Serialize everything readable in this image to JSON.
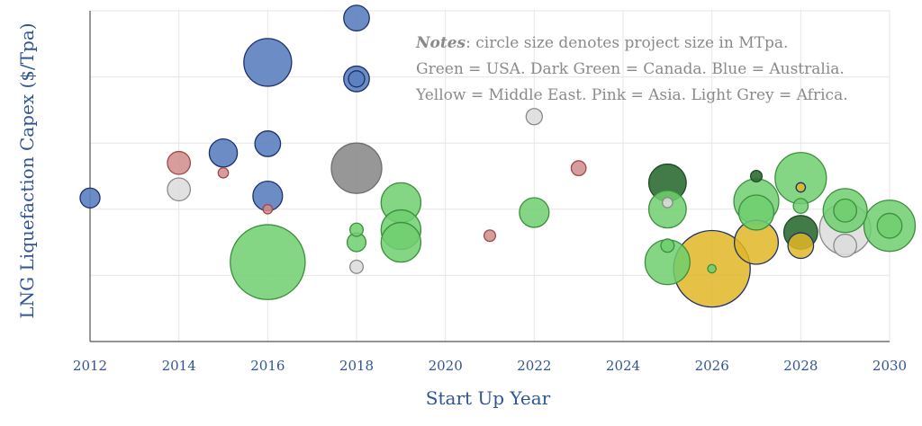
{
  "chart_data": {
    "type": "scatter",
    "title": "",
    "xlabel": "Start Up Year",
    "ylabel": "LNG Liquefaction Capex ($/Tpa)",
    "xlim": [
      2012,
      2030
    ],
    "ylim": [
      0,
      5
    ],
    "xticks": [
      2012,
      2014,
      2016,
      2018,
      2020,
      2022,
      2024,
      2026,
      2028,
      2030
    ],
    "grid": true,
    "notes": {
      "lead": "Notes",
      "lines": [
        ": circle size denotes project size in MTpa.",
        "Green = USA. Dark Green = Canada. Blue = Australia.",
        "Yellow = Middle East. Pink = Asia. Light Grey = Africa."
      ]
    },
    "colors": {
      "usa": "#6fcf6f",
      "canada": "#2e6b34",
      "australia": "#5b7fbf",
      "middle_east": "#e0b626",
      "asia": "#d08c8c",
      "africa": "#dcdcdc",
      "other": "#8c8c8c"
    },
    "points": [
      {
        "x": 2012,
        "y": 2.17,
        "size": 4.5,
        "region": "australia"
      },
      {
        "x": 2014,
        "y": 2.7,
        "size": 6,
        "region": "asia"
      },
      {
        "x": 2014,
        "y": 2.3,
        "size": 6,
        "region": "africa"
      },
      {
        "x": 2015,
        "y": 2.85,
        "size": 9,
        "region": "australia"
      },
      {
        "x": 2015,
        "y": 2.55,
        "size": 1.2,
        "region": "asia"
      },
      {
        "x": 2016,
        "y": 4.22,
        "size": 26,
        "region": "australia"
      },
      {
        "x": 2016,
        "y": 2.99,
        "size": 7.5,
        "region": "australia"
      },
      {
        "x": 2016,
        "y": 2.2,
        "size": 10,
        "region": "australia"
      },
      {
        "x": 2016,
        "y": 2.0,
        "size": 1.0,
        "region": "asia"
      },
      {
        "x": 2016,
        "y": 1.2,
        "size": 64,
        "region": "usa"
      },
      {
        "x": 2018,
        "y": 4.89,
        "size": 7.5,
        "region": "australia"
      },
      {
        "x": 2018,
        "y": 3.97,
        "size": 7.5,
        "region": "australia"
      },
      {
        "x": 2018,
        "y": 3.97,
        "size": 3.0,
        "region": "australia"
      },
      {
        "x": 2018,
        "y": 2.62,
        "size": 29,
        "region": "other"
      },
      {
        "x": 2018,
        "y": 1.69,
        "size": 2.0,
        "region": "usa"
      },
      {
        "x": 2018,
        "y": 1.5,
        "size": 4.0,
        "region": "usa"
      },
      {
        "x": 2018,
        "y": 1.13,
        "size": 2.0,
        "region": "africa"
      },
      {
        "x": 2019,
        "y": 2.1,
        "size": 18,
        "region": "usa"
      },
      {
        "x": 2019,
        "y": 1.69,
        "size": 18,
        "region": "usa"
      },
      {
        "x": 2019,
        "y": 1.5,
        "size": 18,
        "region": "usa"
      },
      {
        "x": 2021,
        "y": 1.6,
        "size": 1.5,
        "region": "asia"
      },
      {
        "x": 2022,
        "y": 3.4,
        "size": 3.0,
        "region": "africa"
      },
      {
        "x": 2022,
        "y": 1.95,
        "size": 10,
        "region": "usa"
      },
      {
        "x": 2023,
        "y": 2.62,
        "size": 2.5,
        "region": "asia"
      },
      {
        "x": 2025,
        "y": 2.4,
        "size": 16,
        "region": "canada"
      },
      {
        "x": 2025,
        "y": 2.0,
        "size": 16,
        "region": "usa"
      },
      {
        "x": 2025,
        "y": 2.1,
        "size": 1.2,
        "region": "africa"
      },
      {
        "x": 2025,
        "y": 1.45,
        "size": 2.0,
        "region": "usa"
      },
      {
        "x": 2025,
        "y": 1.2,
        "size": 23,
        "region": "usa"
      },
      {
        "x": 2026,
        "y": 1.1,
        "size": 67,
        "region": "middle_east"
      },
      {
        "x": 2026,
        "y": 1.1,
        "size": 0.8,
        "region": "usa"
      },
      {
        "x": 2027,
        "y": 2.5,
        "size": 1.5,
        "region": "canada"
      },
      {
        "x": 2027,
        "y": 2.12,
        "size": 23,
        "region": "usa"
      },
      {
        "x": 2027,
        "y": 1.95,
        "size": 14,
        "region": "usa"
      },
      {
        "x": 2027,
        "y": 1.5,
        "size": 22,
        "region": "middle_east"
      },
      {
        "x": 2028,
        "y": 2.47,
        "size": 30,
        "region": "usa"
      },
      {
        "x": 2028,
        "y": 2.33,
        "size": 1.0,
        "region": "middle_east"
      },
      {
        "x": 2028,
        "y": 2.05,
        "size": 2.5,
        "region": "usa"
      },
      {
        "x": 2028,
        "y": 1.45,
        "size": 7.5,
        "region": "middle_east"
      },
      {
        "x": 2028,
        "y": 1.65,
        "size": 13,
        "region": "canada"
      },
      {
        "x": 2029,
        "y": 1.98,
        "size": 22,
        "region": "usa"
      },
      {
        "x": 2029,
        "y": 1.98,
        "size": 6,
        "region": "usa"
      },
      {
        "x": 2029,
        "y": 1.7,
        "size": 30,
        "region": "africa"
      },
      {
        "x": 2029,
        "y": 1.45,
        "size": 6,
        "region": "africa"
      },
      {
        "x": 2030,
        "y": 1.75,
        "size": 30,
        "region": "usa"
      },
      {
        "x": 2030,
        "y": 1.75,
        "size": 7,
        "region": "usa"
      }
    ]
  }
}
